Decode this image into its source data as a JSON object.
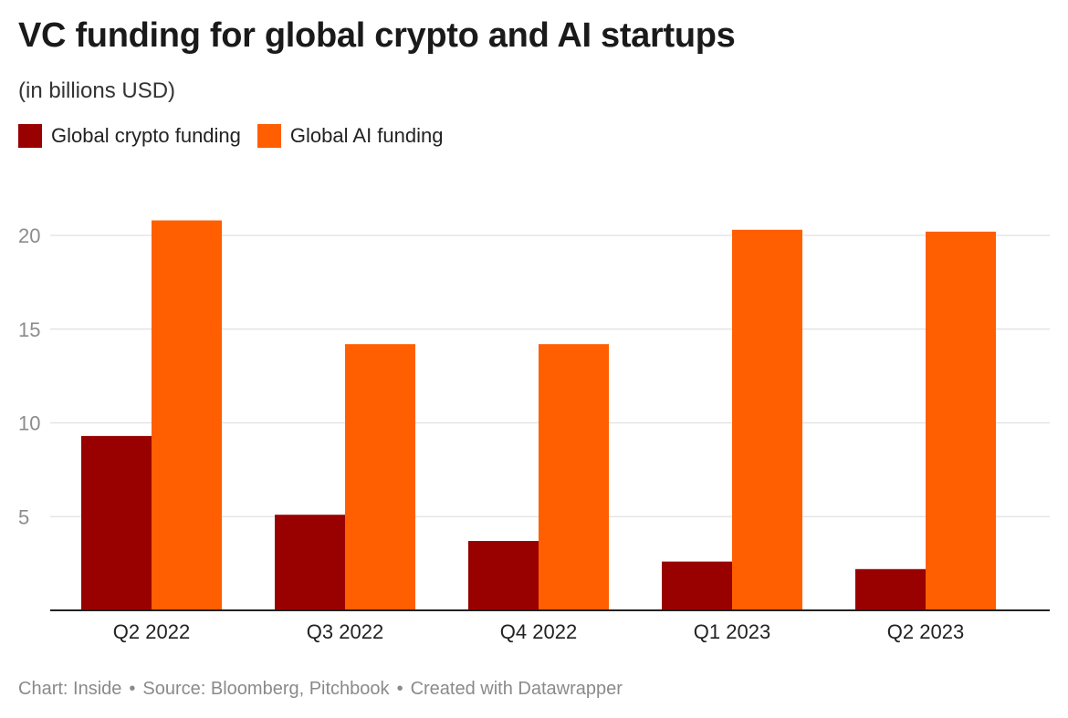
{
  "header": {
    "title": "VC funding for global crypto and AI startups",
    "subtitle": "(in billions USD)"
  },
  "legend": {
    "items": [
      {
        "label": "Global crypto funding",
        "color": "#990000"
      },
      {
        "label": "Global AI funding",
        "color": "#ff5f00"
      }
    ]
  },
  "chart_data": {
    "type": "bar",
    "categories": [
      "Q2 2022",
      "Q3 2022",
      "Q4 2022",
      "Q1 2023",
      "Q2 2023"
    ],
    "series": [
      {
        "name": "Global crypto funding",
        "color": "#990000",
        "values": [
          9.3,
          5.1,
          3.7,
          2.6,
          2.2
        ]
      },
      {
        "name": "Global AI funding",
        "color": "#ff5f00",
        "values": [
          20.8,
          14.2,
          14.2,
          20.3,
          20.2
        ]
      }
    ],
    "yticks": [
      5,
      10,
      15,
      20
    ],
    "ylim": [
      0,
      21.5
    ],
    "grid": true,
    "legend_position": "top-left"
  },
  "footer": {
    "chart_credit": "Chart: Inside",
    "source": "Source: Bloomberg, Pitchbook",
    "created_with": "Created with Datawrapper",
    "separator": "•"
  }
}
